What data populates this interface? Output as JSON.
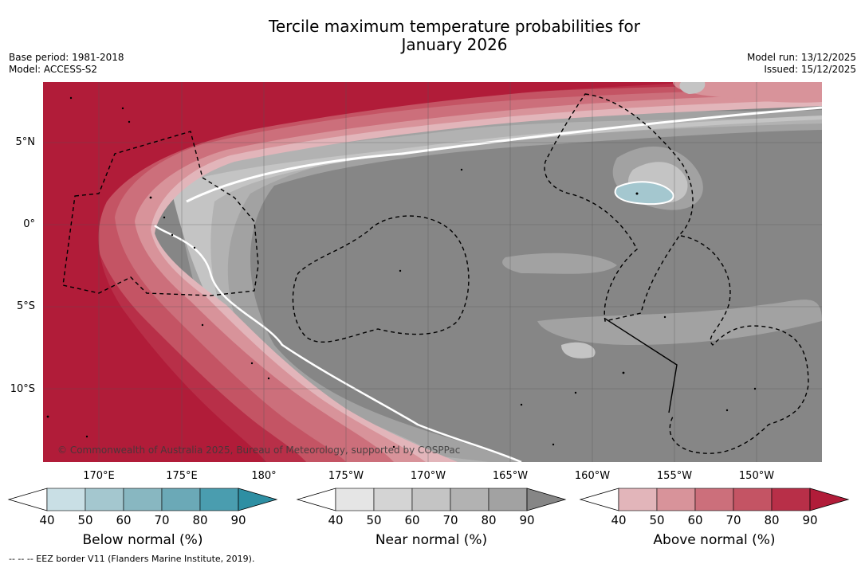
{
  "title_line1": "Tercile maximum temperature probabilities for",
  "title_line2": "January 2026",
  "base_period": "Base period: 1981-2018",
  "model": "Model: ACCESS-S2",
  "model_run": "Model run: 13/12/2025",
  "issued": "Issued: 15/12/2025",
  "credit": "© Commonwealth of Australia 2025, Bureau of Meteorology, supported by COSPPac",
  "footnote": "-- -- -- EEZ border V11 (Flanders Marine Institute, 2019).",
  "lon_labels": [
    "170°E",
    "175°E",
    "180°",
    "175°W",
    "170°W",
    "165°W",
    "160°W",
    "155°W",
    "150°W"
  ],
  "lat_labels": [
    "5°N",
    "0°",
    "5°S",
    "10°S"
  ],
  "colorbars": {
    "below": {
      "label": "Below normal (%)",
      "ticks": [
        "40",
        "50",
        "60",
        "70",
        "80",
        "90"
      ],
      "colors": [
        "#c9dfe5",
        "#a4c7cf",
        "#88b7c1",
        "#6ba9b7",
        "#4a9daf",
        "#2e8fa3"
      ]
    },
    "near": {
      "label": "Near normal (%)",
      "ticks": [
        "40",
        "50",
        "60",
        "70",
        "80",
        "90"
      ],
      "colors": [
        "#e5e5e5",
        "#d4d4d4",
        "#c4c4c4",
        "#b2b2b2",
        "#a2a2a2",
        "#868686"
      ]
    },
    "above": {
      "label": "Above normal (%)",
      "ticks": [
        "40",
        "50",
        "60",
        "70",
        "80",
        "90"
      ],
      "colors": [
        "#e2b5ba",
        "#d8939a",
        "#cc6f7b",
        "#c45464",
        "#b82f48",
        "#b11c39"
      ]
    }
  }
}
